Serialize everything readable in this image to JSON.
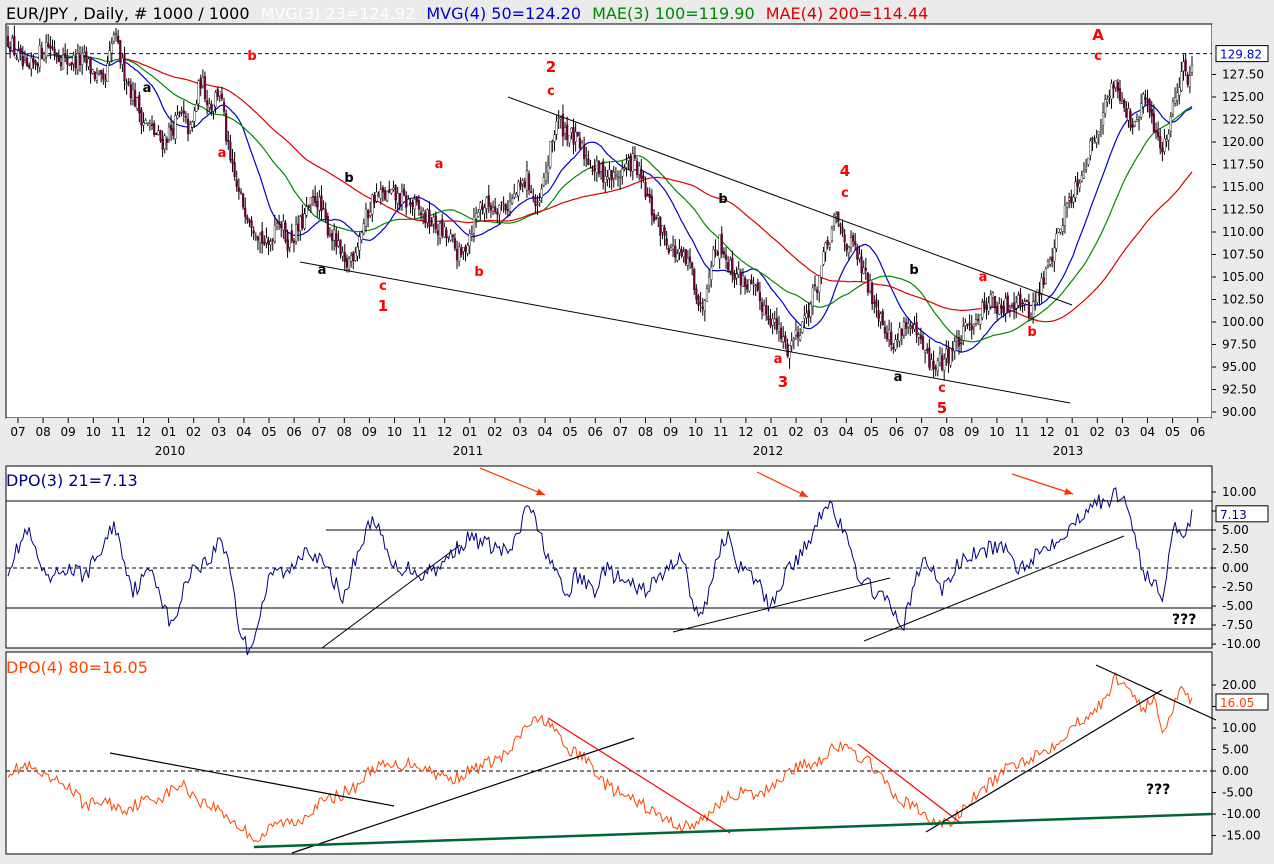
{
  "header": {
    "symbol": "EUR/JPY , Daily, # 1000 / 1000",
    "ma1": "MVG(3) 23=124.92",
    "ma2": "MVG(4) 50=124.20",
    "ma3": "MAE(3) 100=119.90",
    "ma4": "MAE(4) 200=114.44"
  },
  "colors": {
    "background": "#ffffff",
    "frame": "#ebebeb",
    "ma1": "#ffffff",
    "ma2": "#0000cc",
    "ma3": "#008800",
    "ma4": "#dd0000",
    "dpo3": "#000080",
    "dpo4": "#ff4400",
    "wave_red": "#ff0000",
    "wave_black": "#000000",
    "support_green": "#006633"
  },
  "chart_data": [
    {
      "type": "candlestick",
      "panel": "price",
      "last_price": "129.82",
      "y_ticks": [
        "127.50",
        "125.00",
        "122.50",
        "120.00",
        "117.50",
        "115.00",
        "112.50",
        "110.00",
        "107.50",
        "105.00",
        "102.50",
        "100.00",
        "97.50",
        "95.00",
        "92.50",
        "90.00"
      ],
      "x_months": [
        "07",
        "08",
        "09",
        "10",
        "11",
        "12",
        "01",
        "02",
        "03",
        "04",
        "05",
        "06",
        "07",
        "08",
        "09",
        "10",
        "11",
        "12",
        "01",
        "02",
        "03",
        "04",
        "05",
        "06",
        "07",
        "08",
        "09",
        "10",
        "11",
        "12",
        "01",
        "02",
        "03",
        "04",
        "05",
        "06",
        "07",
        "08",
        "09",
        "10",
        "11",
        "12",
        "01",
        "02",
        "03",
        "04",
        "05",
        "06"
      ],
      "x_years": [
        "2010",
        "2011",
        "2012",
        "2013"
      ],
      "wave_labels": [
        "a",
        "b",
        "a",
        "b",
        "c",
        "1",
        "a",
        "b",
        "2",
        "c",
        "b",
        "a",
        "4",
        "c",
        "a",
        "3",
        "b",
        "a",
        "c",
        "5",
        "a",
        "b",
        "A",
        "c"
      ],
      "series_anchor_points": [
        {
          "t": 0,
          "close": 131.5
        },
        {
          "t": 2,
          "close": 127.5
        },
        {
          "t": 4,
          "close": 131
        },
        {
          "t": 6,
          "close": 129
        },
        {
          "t": 8,
          "close": 129
        },
        {
          "t": 10,
          "close": 126
        },
        {
          "t": 11,
          "close": 132
        },
        {
          "t": 12,
          "close": 128
        },
        {
          "t": 14,
          "close": 122.5
        },
        {
          "t": 16,
          "close": 120
        },
        {
          "t": 18,
          "close": 123
        },
        {
          "t": 19,
          "close": 121
        },
        {
          "t": 20,
          "close": 127
        },
        {
          "t": 21,
          "close": 124
        },
        {
          "t": 22,
          "close": 126
        },
        {
          "t": 23,
          "close": 118
        },
        {
          "t": 24,
          "close": 114
        },
        {
          "t": 26,
          "close": 110
        },
        {
          "t": 27,
          "close": 108
        },
        {
          "t": 28,
          "close": 112
        },
        {
          "t": 29,
          "close": 109
        },
        {
          "t": 30,
          "close": 110
        },
        {
          "t": 31,
          "close": 112
        },
        {
          "t": 32,
          "close": 114
        },
        {
          "t": 33,
          "close": 111
        },
        {
          "t": 34,
          "close": 109
        },
        {
          "t": 35,
          "close": 106
        },
        {
          "t": 36,
          "close": 108
        },
        {
          "t": 37,
          "close": 111
        },
        {
          "t": 38,
          "close": 114
        },
        {
          "t": 40,
          "close": 114
        },
        {
          "t": 42,
          "close": 113
        },
        {
          "t": 44,
          "close": 111
        },
        {
          "t": 46,
          "close": 109
        },
        {
          "t": 47,
          "close": 107
        },
        {
          "t": 49,
          "close": 113
        },
        {
          "t": 52,
          "close": 113
        },
        {
          "t": 54,
          "close": 116
        },
        {
          "t": 55,
          "close": 112
        },
        {
          "t": 57,
          "close": 122.5
        },
        {
          "t": 59,
          "close": 120
        },
        {
          "t": 61,
          "close": 117
        },
        {
          "t": 63,
          "close": 116
        },
        {
          "t": 65,
          "close": 118
        },
        {
          "t": 67,
          "close": 112
        },
        {
          "t": 69,
          "close": 108
        },
        {
          "t": 71,
          "close": 106
        },
        {
          "t": 72,
          "close": 101
        },
        {
          "t": 73,
          "close": 107
        },
        {
          "t": 74,
          "close": 109
        },
        {
          "t": 75,
          "close": 106
        },
        {
          "t": 77,
          "close": 104
        },
        {
          "t": 79,
          "close": 101
        },
        {
          "t": 81,
          "close": 97
        },
        {
          "t": 82,
          "close": 99
        },
        {
          "t": 83,
          "close": 101
        },
        {
          "t": 84,
          "close": 104
        },
        {
          "t": 85,
          "close": 108
        },
        {
          "t": 86,
          "close": 111.5
        },
        {
          "t": 87,
          "close": 109
        },
        {
          "t": 88,
          "close": 108
        },
        {
          "t": 89,
          "close": 105
        },
        {
          "t": 91,
          "close": 100
        },
        {
          "t": 92,
          "close": 97
        },
        {
          "t": 93,
          "close": 100
        },
        {
          "t": 94,
          "close": 99
        },
        {
          "t": 96,
          "close": 95
        },
        {
          "t": 97,
          "close": 95.5
        },
        {
          "t": 98,
          "close": 97
        },
        {
          "t": 99,
          "close": 98
        },
        {
          "t": 100,
          "close": 100
        },
        {
          "t": 101,
          "close": 101
        },
        {
          "t": 102,
          "close": 103
        },
        {
          "t": 103,
          "close": 101
        },
        {
          "t": 105,
          "close": 103
        },
        {
          "t": 106,
          "close": 101
        },
        {
          "t": 107,
          "close": 103
        },
        {
          "t": 108,
          "close": 106
        },
        {
          "t": 110,
          "close": 113
        },
        {
          "t": 112,
          "close": 118
        },
        {
          "t": 114,
          "close": 124
        },
        {
          "t": 115,
          "close": 127
        },
        {
          "t": 116,
          "close": 124
        },
        {
          "t": 117,
          "close": 121
        },
        {
          "t": 118,
          "close": 125
        },
        {
          "t": 119,
          "close": 122
        },
        {
          "t": 120,
          "close": 119
        },
        {
          "t": 121,
          "close": 124
        },
        {
          "t": 122,
          "close": 128.5
        },
        {
          "t": 122.6,
          "close": 127
        },
        {
          "t": 123,
          "close": 129.5
        }
      ]
    },
    {
      "type": "line",
      "panel": "dpo3",
      "title": "DPO(3) 21=7.13",
      "last_value": "7.13",
      "y_ticks": [
        "10.00",
        "7.50",
        "5.00",
        "2.50",
        "0.00",
        "-2.50",
        "-5.00",
        "-7.50",
        "-10.00"
      ],
      "ylim": [
        -10.5,
        12
      ],
      "note": "???",
      "anchor_points": [
        {
          "t": 0,
          "v": 0
        },
        {
          "t": 2,
          "v": 5
        },
        {
          "t": 4,
          "v": -2
        },
        {
          "t": 6,
          "v": 0
        },
        {
          "t": 8,
          "v": -1
        },
        {
          "t": 10,
          "v": 3
        },
        {
          "t": 11,
          "v": 6
        },
        {
          "t": 13,
          "v": -3
        },
        {
          "t": 15,
          "v": 0
        },
        {
          "t": 16,
          "v": -4
        },
        {
          "t": 17,
          "v": -8
        },
        {
          "t": 18,
          "v": -4
        },
        {
          "t": 19,
          "v": 0
        },
        {
          "t": 21,
          "v": 1
        },
        {
          "t": 22,
          "v": 4
        },
        {
          "t": 23,
          "v": 1
        },
        {
          "t": 24,
          "v": -8
        },
        {
          "t": 25,
          "v": -11
        },
        {
          "t": 26,
          "v": -7
        },
        {
          "t": 27,
          "v": -2
        },
        {
          "t": 28,
          "v": 0
        },
        {
          "t": 29,
          "v": -1
        },
        {
          "t": 30,
          "v": 1
        },
        {
          "t": 31,
          "v": 3
        },
        {
          "t": 33,
          "v": 0
        },
        {
          "t": 34,
          "v": -2
        },
        {
          "t": 35,
          "v": -4
        },
        {
          "t": 36,
          "v": 1
        },
        {
          "t": 37,
          "v": 4
        },
        {
          "t": 38,
          "v": 7
        },
        {
          "t": 39,
          "v": 3
        },
        {
          "t": 40,
          "v": 0
        },
        {
          "t": 42,
          "v": 0
        },
        {
          "t": 43,
          "v": -1
        },
        {
          "t": 44,
          "v": 0
        },
        {
          "t": 45,
          "v": 0
        },
        {
          "t": 46,
          "v": 2
        },
        {
          "t": 48,
          "v": 4
        },
        {
          "t": 50,
          "v": 3
        },
        {
          "t": 52,
          "v": 2
        },
        {
          "t": 53,
          "v": 4
        },
        {
          "t": 54,
          "v": 9
        },
        {
          "t": 55,
          "v": 5
        },
        {
          "t": 56,
          "v": 2
        },
        {
          "t": 57,
          "v": -1
        },
        {
          "t": 58,
          "v": -4
        },
        {
          "t": 59,
          "v": -1
        },
        {
          "t": 61,
          "v": -3
        },
        {
          "t": 62,
          "v": 0
        },
        {
          "t": 64,
          "v": -2
        },
        {
          "t": 66,
          "v": -3
        },
        {
          "t": 68,
          "v": -1
        },
        {
          "t": 70,
          "v": 2
        },
        {
          "t": 71,
          "v": -4
        },
        {
          "t": 72,
          "v": -7
        },
        {
          "t": 73,
          "v": -2
        },
        {
          "t": 74,
          "v": 3
        },
        {
          "t": 75,
          "v": 4
        },
        {
          "t": 76,
          "v": 0
        },
        {
          "t": 78,
          "v": -2
        },
        {
          "t": 79,
          "v": -5
        },
        {
          "t": 80,
          "v": -3
        },
        {
          "t": 81,
          "v": 0
        },
        {
          "t": 82,
          "v": 1
        },
        {
          "t": 83,
          "v": 3
        },
        {
          "t": 84,
          "v": 6
        },
        {
          "t": 85,
          "v": 9
        },
        {
          "t": 86,
          "v": 7
        },
        {
          "t": 87,
          "v": 4
        },
        {
          "t": 88,
          "v": 0
        },
        {
          "t": 89,
          "v": -2
        },
        {
          "t": 90,
          "v": -3
        },
        {
          "t": 91,
          "v": -4
        },
        {
          "t": 92,
          "v": -6
        },
        {
          "t": 93,
          "v": -7.5
        },
        {
          "t": 94,
          "v": -3
        },
        {
          "t": 95,
          "v": 1
        },
        {
          "t": 96,
          "v": 0
        },
        {
          "t": 97,
          "v": -3
        },
        {
          "t": 98,
          "v": -1
        },
        {
          "t": 99,
          "v": 1
        },
        {
          "t": 101,
          "v": 2
        },
        {
          "t": 103,
          "v": 3
        },
        {
          "t": 105,
          "v": 0
        },
        {
          "t": 107,
          "v": 2
        },
        {
          "t": 109,
          "v": 4
        },
        {
          "t": 111,
          "v": 6
        },
        {
          "t": 112,
          "v": 8
        },
        {
          "t": 113,
          "v": 9
        },
        {
          "t": 114,
          "v": 8
        },
        {
          "t": 115,
          "v": 10
        },
        {
          "t": 116,
          "v": 9
        },
        {
          "t": 117,
          "v": 5
        },
        {
          "t": 118,
          "v": -1
        },
        {
          "t": 119,
          "v": -2
        },
        {
          "t": 120,
          "v": -4
        },
        {
          "t": 121,
          "v": 6
        },
        {
          "t": 122,
          "v": 4
        },
        {
          "t": 123,
          "v": 7
        }
      ]
    },
    {
      "type": "line",
      "panel": "dpo4",
      "title": "DPO(4) 80=16.05",
      "last_value": "16.05",
      "y_ticks": [
        "20.00",
        "15.00",
        "10.00",
        "5.00",
        "0.00",
        "-5.00",
        "-10.00",
        "-15.00"
      ],
      "ylim": [
        -18,
        25
      ],
      "note": "???",
      "anchor_points": [
        {
          "t": 0,
          "v": 0
        },
        {
          "t": 2,
          "v": 1
        },
        {
          "t": 4,
          "v": -2
        },
        {
          "t": 6,
          "v": -3
        },
        {
          "t": 8,
          "v": -8
        },
        {
          "t": 10,
          "v": -7
        },
        {
          "t": 12,
          "v": -9
        },
        {
          "t": 14,
          "v": -7
        },
        {
          "t": 16,
          "v": -6
        },
        {
          "t": 18,
          "v": -3
        },
        {
          "t": 20,
          "v": -7
        },
        {
          "t": 22,
          "v": -9
        },
        {
          "t": 24,
          "v": -13
        },
        {
          "t": 26,
          "v": -16
        },
        {
          "t": 28,
          "v": -12
        },
        {
          "t": 30,
          "v": -12
        },
        {
          "t": 32,
          "v": -8
        },
        {
          "t": 34,
          "v": -6
        },
        {
          "t": 36,
          "v": -4
        },
        {
          "t": 38,
          "v": 1
        },
        {
          "t": 40,
          "v": 1
        },
        {
          "t": 42,
          "v": 2
        },
        {
          "t": 44,
          "v": 0
        },
        {
          "t": 46,
          "v": -2
        },
        {
          "t": 48,
          "v": 0
        },
        {
          "t": 50,
          "v": 2
        },
        {
          "t": 52,
          "v": 4
        },
        {
          "t": 54,
          "v": 11
        },
        {
          "t": 56,
          "v": 12
        },
        {
          "t": 58,
          "v": 5
        },
        {
          "t": 60,
          "v": 3
        },
        {
          "t": 62,
          "v": -3
        },
        {
          "t": 64,
          "v": -6
        },
        {
          "t": 66,
          "v": -8
        },
        {
          "t": 68,
          "v": -11
        },
        {
          "t": 70,
          "v": -13
        },
        {
          "t": 72,
          "v": -12
        },
        {
          "t": 74,
          "v": -7
        },
        {
          "t": 76,
          "v": -5
        },
        {
          "t": 78,
          "v": -6
        },
        {
          "t": 80,
          "v": -2
        },
        {
          "t": 82,
          "v": 1
        },
        {
          "t": 84,
          "v": 2
        },
        {
          "t": 86,
          "v": 6
        },
        {
          "t": 88,
          "v": 4
        },
        {
          "t": 90,
          "v": 1
        },
        {
          "t": 92,
          "v": -6
        },
        {
          "t": 94,
          "v": -8
        },
        {
          "t": 96,
          "v": -12
        },
        {
          "t": 98,
          "v": -12
        },
        {
          "t": 100,
          "v": -7
        },
        {
          "t": 102,
          "v": -3
        },
        {
          "t": 104,
          "v": 1
        },
        {
          "t": 106,
          "v": 3
        },
        {
          "t": 108,
          "v": 5
        },
        {
          "t": 110,
          "v": 9
        },
        {
          "t": 112,
          "v": 13
        },
        {
          "t": 114,
          "v": 16
        },
        {
          "t": 115,
          "v": 22
        },
        {
          "t": 116,
          "v": 20
        },
        {
          "t": 117,
          "v": 18
        },
        {
          "t": 118,
          "v": 14
        },
        {
          "t": 119,
          "v": 17
        },
        {
          "t": 120,
          "v": 9
        },
        {
          "t": 121,
          "v": 15
        },
        {
          "t": 122,
          "v": 20
        },
        {
          "t": 123,
          "v": 16
        }
      ]
    }
  ]
}
